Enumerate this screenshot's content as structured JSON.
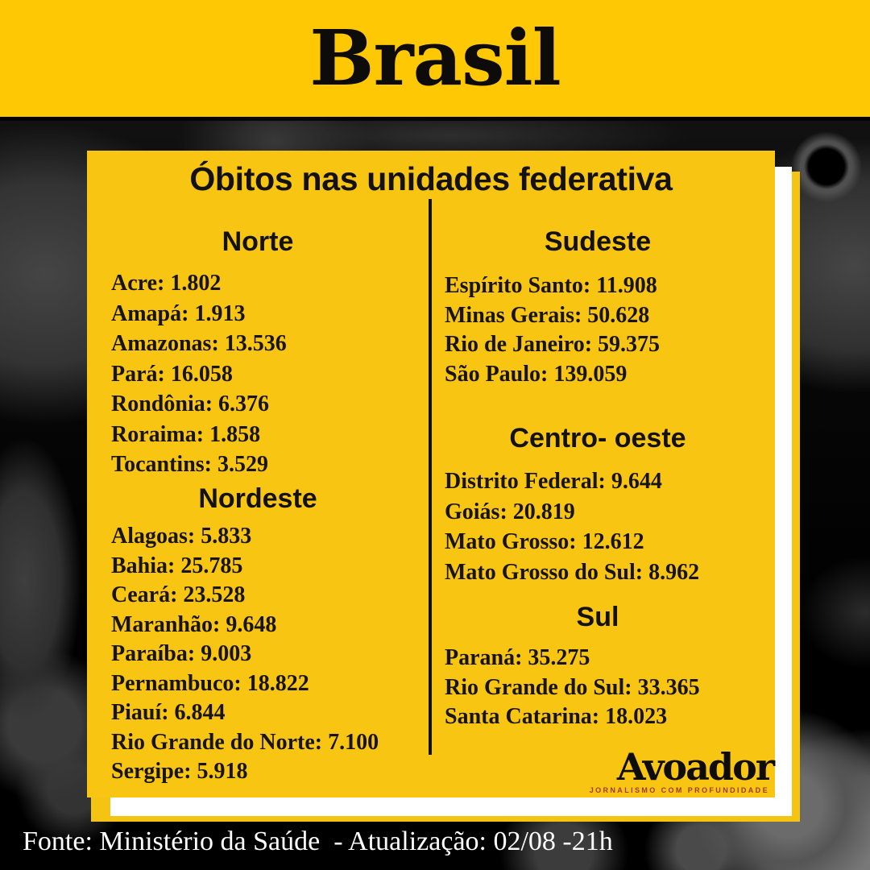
{
  "banner": {
    "title": "Brasil"
  },
  "card": {
    "title": "Óbitos nas unidades federativa",
    "columns": [
      {
        "sections": [
          {
            "heading": "Norte",
            "items": [
              {
                "label": "Acre",
                "value": "1.802"
              },
              {
                "label": "Amapá",
                "value": "1.913"
              },
              {
                "label": "Amazonas",
                "value": "13.536"
              },
              {
                "label": "Pará",
                "value": "16.058"
              },
              {
                "label": "Rondônia",
                "value": "6.376"
              },
              {
                "label": "Roraima",
                "value": "1.858"
              },
              {
                "label": "Tocantins",
                "value": "3.529"
              }
            ]
          },
          {
            "heading": "Nordeste",
            "items": [
              {
                "label": "Alagoas",
                "value": "5.833"
              },
              {
                "label": "Bahia",
                "value": "25.785"
              },
              {
                "label": "Ceará",
                "value": "23.528"
              },
              {
                "label": "Maranhão",
                "value": "9.648"
              },
              {
                "label": "Paraíba",
                "value": "9.003"
              },
              {
                "label": "Pernambuco",
                "value": "18.822"
              },
              {
                "label": "Piauí",
                "value": "6.844"
              },
              {
                "label": "Rio Grande do Norte",
                "value": "7.100"
              },
              {
                "label": "Sergipe",
                "value": "5.918"
              }
            ]
          }
        ]
      },
      {
        "sections": [
          {
            "heading": "Sudeste",
            "items": [
              {
                "label": "Espírito Santo",
                "value": "11.908"
              },
              {
                "label": "Minas Gerais",
                "value": "50.628"
              },
              {
                "label": "Rio de Janeiro",
                "value": "59.375"
              },
              {
                "label": "São Paulo",
                "value": "139.059"
              }
            ]
          },
          {
            "heading": "Centro- oeste",
            "items": [
              {
                "label": "Distrito Federal",
                "value": "9.644"
              },
              {
                "label": "Goiás",
                "value": "20.819"
              },
              {
                "label": "Mato Grosso",
                "value": "12.612"
              },
              {
                "label": "Mato Grosso do Sul",
                "value": "8.962"
              }
            ]
          },
          {
            "heading": "Sul",
            "items": [
              {
                "label": "Paraná",
                "value": "35.275"
              },
              {
                "label": "Rio Grande do Sul",
                "value": "33.365"
              },
              {
                "label": "Santa Catarina",
                "value": "18.023"
              }
            ]
          }
        ]
      }
    ]
  },
  "logo": {
    "name": "Avoador",
    "tagline": "JORNALISMO COM PROFUNDIDADE"
  },
  "footer": {
    "text": "Fonte: Ministério da Saúde  - Atualização: 02/08 -21h"
  },
  "colors": {
    "banner_yellow": "#FFC805",
    "card_yellow": "#F8C513",
    "back_card_yellow": "#F5C312",
    "shadow_card_white": "#FFFFFF",
    "text_black": "#141210",
    "tagline_red": "#9E3A2A",
    "footer_white": "#FFFFFF"
  },
  "chart_data": {
    "type": "table",
    "title": "Óbitos nas unidades federativa",
    "country": "Brasil",
    "source": "Fonte: Ministério da Saúde - Atualização: 02/08 -21h",
    "regions": [
      {
        "name": "Norte",
        "states": [
          "Acre",
          "Amapá",
          "Amazonas",
          "Pará",
          "Rondônia",
          "Roraima",
          "Tocantins"
        ],
        "deaths": [
          1802,
          1913,
          13536,
          16058,
          6376,
          1858,
          3529
        ]
      },
      {
        "name": "Nordeste",
        "states": [
          "Alagoas",
          "Bahia",
          "Ceará",
          "Maranhão",
          "Paraíba",
          "Pernambuco",
          "Piauí",
          "Rio Grande do Norte",
          "Sergipe"
        ],
        "deaths": [
          5833,
          25785,
          23528,
          9648,
          9003,
          18822,
          6844,
          7100,
          5918
        ]
      },
      {
        "name": "Sudeste",
        "states": [
          "Espírito Santo",
          "Minas Gerais",
          "Rio de Janeiro",
          "São Paulo"
        ],
        "deaths": [
          11908,
          50628,
          59375,
          139059
        ]
      },
      {
        "name": "Centro- oeste",
        "states": [
          "Distrito Federal",
          "Goiás",
          "Mato Grosso",
          "Mato Grosso do Sul"
        ],
        "deaths": [
          9644,
          20819,
          12612,
          8962
        ]
      },
      {
        "name": "Sul",
        "states": [
          "Paraná",
          "Rio Grande do Sul",
          "Santa Catarina"
        ],
        "deaths": [
          35275,
          33365,
          18023
        ]
      }
    ]
  }
}
